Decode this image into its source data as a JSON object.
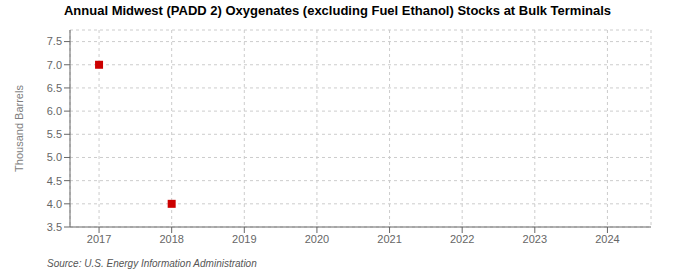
{
  "chart_data": {
    "type": "scatter",
    "title": "Annual Midwest (PADD 2) Oxygenates (excluding Fuel Ethanol) Stocks at Bulk Terminals",
    "y_label": "Thousand Barrels",
    "annotation": "Source: U.S. Energy Information Administration",
    "x": [
      2017,
      2018
    ],
    "values": [
      7.0,
      4.0
    ],
    "color": "#cc0000",
    "marker": "square",
    "xlim": [
      2016.6,
      2024.6
    ],
    "ylim": [
      3.5,
      7.75
    ],
    "xticks": [
      2017,
      2018,
      2019,
      2020,
      2021,
      2022,
      2023,
      2024
    ],
    "yticks": [
      3.5,
      {
        "value": 4.0,
        "label": "4.0"
      },
      4.5,
      {
        "value": 5.0,
        "label": "5.0"
      },
      5.5,
      {
        "value": 6.0,
        "label": "6.0"
      },
      6.5,
      {
        "value": 7.0,
        "label": "7.0"
      },
      7.5
    ],
    "grid": true
  }
}
